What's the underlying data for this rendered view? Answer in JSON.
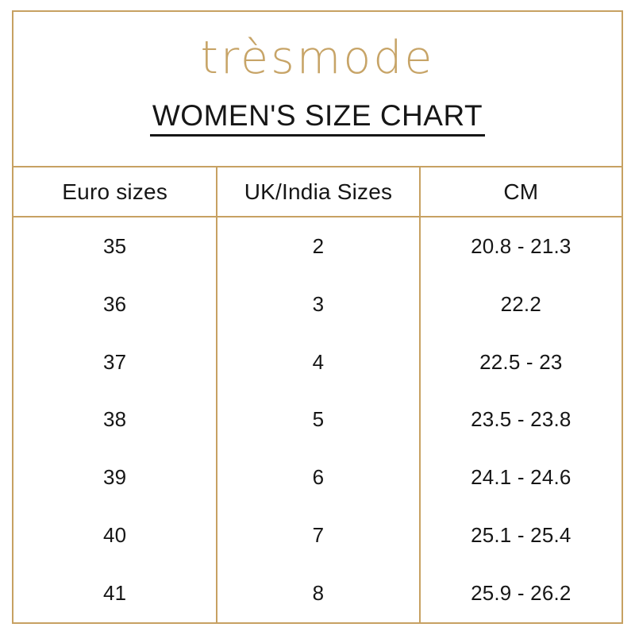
{
  "brand": {
    "logo_text": "trèsmode"
  },
  "title": "WOMEN'S SIZE CHART",
  "colors": {
    "gold_border": "#c7a162",
    "gold_logo": "#c7a467",
    "text": "#161616",
    "background": "#ffffff"
  },
  "table": {
    "columns": [
      "Euro sizes",
      "UK/India Sizes",
      "CM"
    ],
    "rows": [
      [
        "35",
        "2",
        "20.8 - 21.3"
      ],
      [
        "36",
        "3",
        "22.2"
      ],
      [
        "37",
        "4",
        "22.5 - 23"
      ],
      [
        "38",
        "5",
        "23.5 - 23.8"
      ],
      [
        "39",
        "6",
        "24.1 - 24.6"
      ],
      [
        "40",
        "7",
        "25.1 - 25.4"
      ],
      [
        "41",
        "8",
        "25.9 - 26.2"
      ]
    ]
  }
}
